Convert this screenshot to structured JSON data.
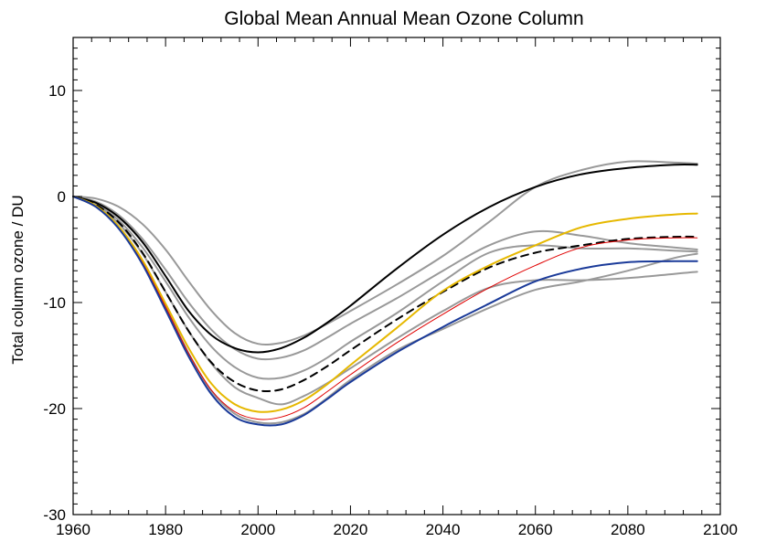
{
  "chart_data": {
    "type": "line",
    "title": "Global Mean Annual Mean Ozone Column",
    "xlabel": "",
    "ylabel": "Total column ozone / DU",
    "xlim": [
      1960,
      2100
    ],
    "ylim": [
      -30,
      15
    ],
    "x_ticks": [
      1960,
      1980,
      2000,
      2020,
      2040,
      2060,
      2080,
      2100
    ],
    "x_tick_labels": [
      "1960",
      "1980",
      "2000",
      "2020",
      "2040",
      "2060",
      "2080",
      "2100"
    ],
    "y_ticks": [
      -30,
      -20,
      -10,
      0,
      10
    ],
    "y_tick_labels": [
      "-30",
      "-20",
      "-10",
      "0",
      "10"
    ],
    "grid": false,
    "legend": "none",
    "series": [
      {
        "color": "#999999",
        "width": 2,
        "dash": "solid",
        "x": [
          1960,
          1965,
          1970,
          1975,
          1980,
          1985,
          1990,
          1995,
          2000,
          2005,
          2010,
          2015,
          2020,
          2030,
          2040,
          2050,
          2060,
          2070,
          2080,
          2090,
          2095
        ],
        "y": [
          0,
          -0.2,
          -1,
          -2.6,
          -5,
          -8,
          -10.8,
          -12.9,
          -13.9,
          -13.8,
          -13.1,
          -12,
          -10.8,
          -8.3,
          -5.6,
          -2.4,
          0.9,
          2.5,
          3.3,
          3.2,
          3.1
        ]
      },
      {
        "color": "#999999",
        "width": 2,
        "dash": "solid",
        "x": [
          1960,
          1965,
          1970,
          1975,
          1980,
          1985,
          1990,
          1995,
          2000,
          2005,
          2010,
          2015,
          2020,
          2030,
          2040,
          2050,
          2060,
          2070,
          2080,
          2090,
          2095
        ],
        "y": [
          0,
          -0.5,
          -1.8,
          -4,
          -6.9,
          -10,
          -12.6,
          -14.4,
          -15.3,
          -15.2,
          -14.5,
          -13.3,
          -12,
          -9.6,
          -7,
          -4.6,
          -3.3,
          -3.7,
          -4.4,
          -4.8,
          -5
        ]
      },
      {
        "color": "#999999",
        "width": 2,
        "dash": "solid",
        "x": [
          1960,
          1965,
          1970,
          1975,
          1980,
          1985,
          1990,
          1995,
          2000,
          2005,
          2010,
          2015,
          2020,
          2030,
          2040,
          2050,
          2060,
          2070,
          2080,
          2090,
          2095
        ],
        "y": [
          0,
          -0.7,
          -2.3,
          -4.8,
          -8,
          -11.4,
          -14.2,
          -16.1,
          -17.1,
          -17.1,
          -16.4,
          -15.2,
          -13.7,
          -11,
          -8,
          -5.3,
          -4.6,
          -4.9,
          -4.9,
          -5.1,
          -5.2
        ]
      },
      {
        "color": "#999999",
        "width": 2,
        "dash": "solid",
        "x": [
          1960,
          1965,
          1970,
          1975,
          1980,
          1985,
          1990,
          1995,
          2000,
          2005,
          2010,
          2015,
          2020,
          2030,
          2040,
          2050,
          2060,
          2070,
          2080,
          2090,
          2095
        ],
        "y": [
          0,
          -0.8,
          -2.6,
          -5.4,
          -9,
          -12.7,
          -15.8,
          -18,
          -19,
          -19.6,
          -18.8,
          -17.6,
          -16.2,
          -13.4,
          -10.8,
          -8.6,
          -7.9,
          -7.9,
          -7.7,
          -7.3,
          -7.1
        ]
      },
      {
        "color": "#999999",
        "width": 2,
        "dash": "solid",
        "x": [
          1960,
          1965,
          1970,
          1975,
          1980,
          1985,
          1990,
          1995,
          2000,
          2005,
          2010,
          2015,
          2020,
          2030,
          2040,
          2050,
          2060,
          2070,
          2080,
          2090,
          2095
        ],
        "y": [
          0,
          -1,
          -3,
          -6.2,
          -10.4,
          -14.8,
          -18.4,
          -20.5,
          -21.3,
          -21.3,
          -20.5,
          -19,
          -17.3,
          -14.5,
          -12.5,
          -10.5,
          -8.8,
          -8,
          -7,
          -5.8,
          -5.4
        ]
      },
      {
        "color": "#000000",
        "width": 2,
        "dash": "solid",
        "x": [
          1960,
          1965,
          1970,
          1975,
          1980,
          1985,
          1990,
          1995,
          2000,
          2005,
          2010,
          2015,
          2020,
          2030,
          2040,
          2050,
          2060,
          2070,
          2080,
          2090,
          2095
        ],
        "y": [
          0,
          -0.6,
          -2,
          -4.3,
          -7.5,
          -10.8,
          -13.1,
          -14.3,
          -14.7,
          -14.3,
          -13.3,
          -11.9,
          -10.3,
          -6.8,
          -3.6,
          -1,
          0.9,
          2.1,
          2.7,
          3,
          3
        ]
      },
      {
        "color": "#000000",
        "width": 2,
        "dash": "dashed",
        "x": [
          1960,
          1965,
          1970,
          1975,
          1980,
          1985,
          1990,
          1995,
          2000,
          2005,
          2010,
          2015,
          2020,
          2030,
          2040,
          2050,
          2060,
          2070,
          2080,
          2090,
          2095
        ],
        "y": [
          0,
          -0.8,
          -2.5,
          -5.3,
          -9,
          -12.7,
          -15.7,
          -17.5,
          -18.3,
          -18.2,
          -17.3,
          -16,
          -14.5,
          -11.6,
          -9,
          -6.7,
          -5.3,
          -4.6,
          -4,
          -3.8,
          -3.8
        ]
      },
      {
        "color": "#e00000",
        "width": 1,
        "dash": "solid",
        "x": [
          1960,
          1965,
          1970,
          1975,
          1980,
          1985,
          1990,
          1995,
          2000,
          2005,
          2010,
          2015,
          2020,
          2030,
          2040,
          2050,
          2060,
          2070,
          2080,
          2090,
          2095
        ],
        "y": [
          0,
          -1,
          -3,
          -6.2,
          -10.4,
          -14.8,
          -18.3,
          -20.3,
          -21,
          -20.8,
          -19.9,
          -18.4,
          -16.8,
          -13.8,
          -11.1,
          -8.6,
          -6.5,
          -4.8,
          -4.1,
          -3.9,
          -3.9
        ]
      },
      {
        "color": "#e6b800",
        "width": 2,
        "dash": "solid",
        "x": [
          1960,
          1965,
          1970,
          1975,
          1980,
          1985,
          1990,
          1995,
          2000,
          2005,
          2010,
          2015,
          2020,
          2030,
          2040,
          2050,
          2060,
          2070,
          2080,
          2090,
          2095
        ],
        "y": [
          0,
          -0.9,
          -2.9,
          -6,
          -10.1,
          -14.3,
          -17.7,
          -19.6,
          -20.3,
          -20.1,
          -19.2,
          -17.7,
          -15.9,
          -12.4,
          -8.9,
          -6.5,
          -4.6,
          -2.9,
          -2.1,
          -1.7,
          -1.6
        ]
      },
      {
        "color": "#1a3a99",
        "width": 2,
        "dash": "solid",
        "x": [
          1960,
          1965,
          1970,
          1975,
          1980,
          1985,
          1990,
          1995,
          2000,
          2005,
          2010,
          2015,
          2020,
          2030,
          2040,
          2050,
          2060,
          2070,
          2080,
          2090,
          2095
        ],
        "y": [
          0,
          -1,
          -3.1,
          -6.4,
          -10.7,
          -15.1,
          -18.7,
          -20.8,
          -21.5,
          -21.5,
          -20.6,
          -19.1,
          -17.5,
          -14.7,
          -12.3,
          -10.1,
          -8,
          -6.8,
          -6.2,
          -6.1,
          -6.1
        ]
      }
    ]
  }
}
